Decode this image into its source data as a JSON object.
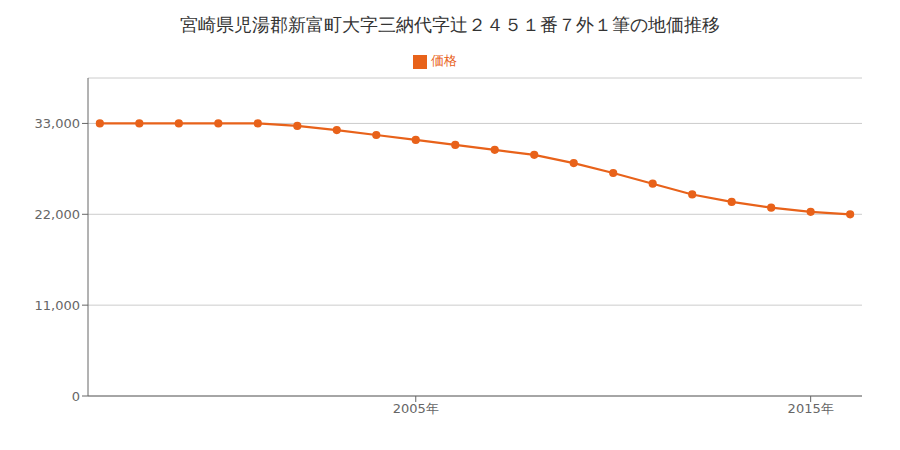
{
  "chart_data": {
    "type": "line",
    "title": "宮崎県児湯郡新富町大字三納代字辻２４５１番７外１筆の地価推移",
    "x": [
      1997,
      1998,
      1999,
      2000,
      2001,
      2002,
      2003,
      2004,
      2005,
      2006,
      2007,
      2008,
      2009,
      2010,
      2011,
      2012,
      2013,
      2014,
      2015,
      2016
    ],
    "series": [
      {
        "name": "価格",
        "color": "#E8621A",
        "marker": "circle",
        "values": [
          33000,
          33000,
          33000,
          33000,
          33000,
          32700,
          32200,
          31600,
          31000,
          30400,
          29800,
          29200,
          28200,
          27000,
          25700,
          24400,
          23500,
          22800,
          22300,
          22000
        ]
      }
    ],
    "xlim": [
      1996.7,
      2016.3
    ],
    "xticks": [
      {
        "value": 2005,
        "label": "2005年"
      },
      {
        "value": 2015,
        "label": "2015年"
      }
    ],
    "ylim": [
      0,
      38500
    ],
    "yticks": [
      0,
      {
        "value": 11000,
        "label": "11,000"
      },
      {
        "value": 22000,
        "label": "22,000"
      },
      {
        "value": 33000,
        "label": "33,000"
      }
    ],
    "grid": true,
    "legend": "top"
  }
}
